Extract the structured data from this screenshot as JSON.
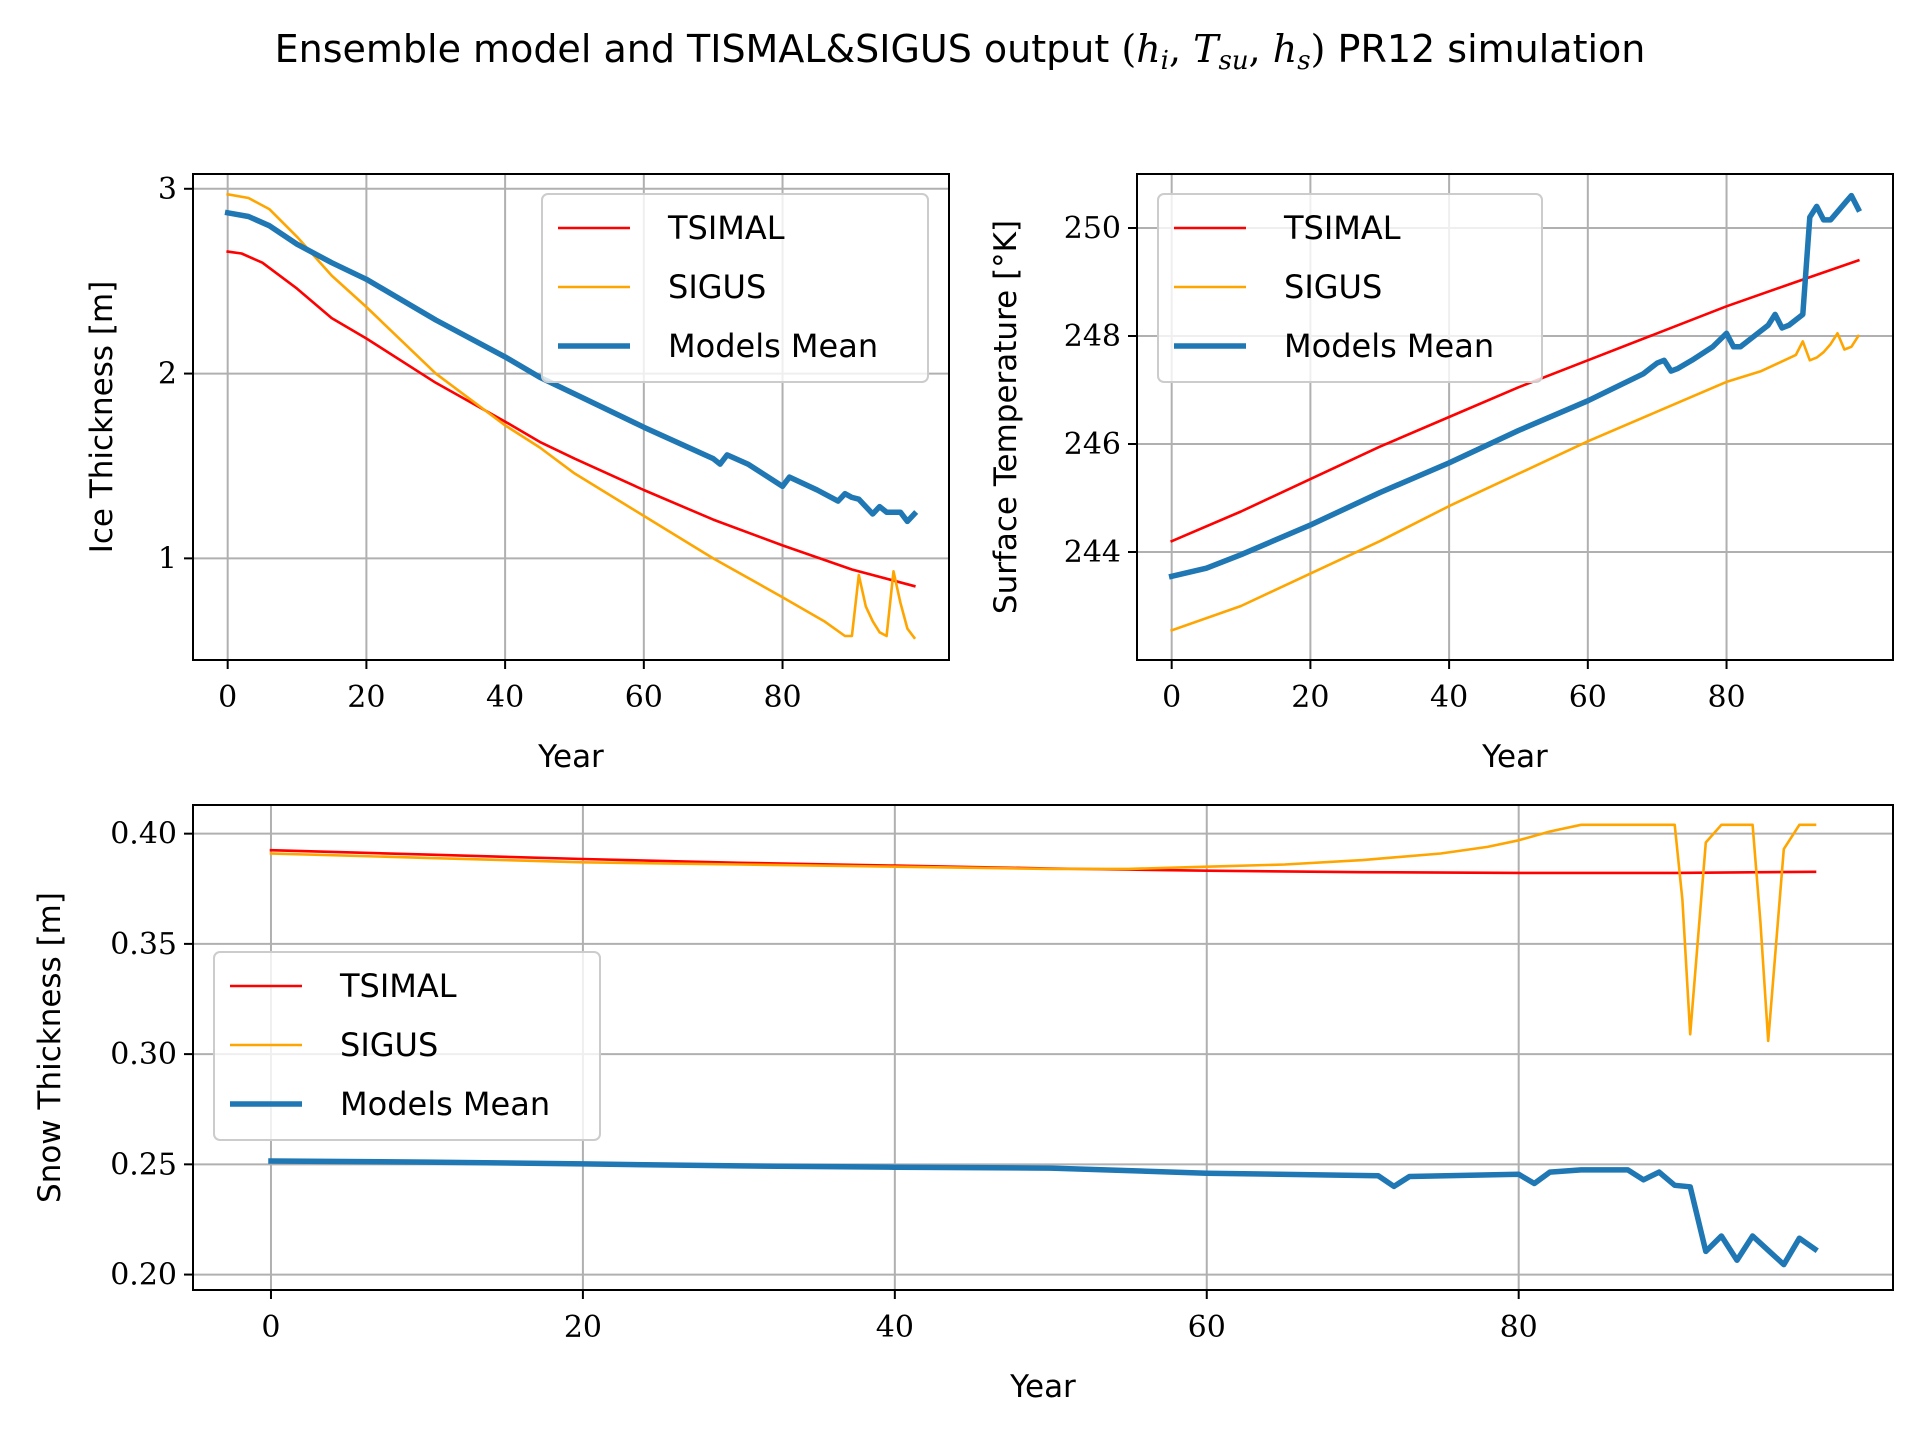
{
  "figure": {
    "title_prefix": "Ensemble model and TISMAL&SIGUS output ",
    "title_math": [
      "(",
      "h",
      "i",
      ", ",
      "T",
      "su",
      ", ",
      "h",
      "s",
      ")"
    ],
    "title_suffix": " PR12 simulation"
  },
  "colors": {
    "TSIMAL": "#ff0000",
    "SIGUS": "#ffa500",
    "Models Mean": "#1f77b4",
    "grid": "#b0b0b0"
  },
  "chart_data": [
    {
      "type": "line",
      "xlabel": "Year",
      "ylabel": "Ice Thickness [m]",
      "xlim": [
        -5,
        104
      ],
      "ylim": [
        0.45,
        3.08
      ],
      "xticks": [
        0,
        20,
        40,
        60,
        80
      ],
      "xtick_labels": [
        "0",
        "20",
        "40",
        "60",
        "80"
      ],
      "yticks": [
        1,
        2,
        3
      ],
      "ytick_labels": [
        "1",
        "2",
        "3"
      ],
      "grid": true,
      "legend": {
        "position": "upper right",
        "entries": [
          "TSIMAL",
          "SIGUS",
          "Models Mean"
        ]
      },
      "series": [
        {
          "name": "TSIMAL",
          "x": [
            0,
            2,
            5,
            10,
            15,
            20,
            30,
            40,
            45,
            50,
            60,
            70,
            80,
            90,
            99
          ],
          "y": [
            2.66,
            2.65,
            2.6,
            2.46,
            2.3,
            2.19,
            1.95,
            1.74,
            1.63,
            1.54,
            1.37,
            1.21,
            1.07,
            0.94,
            0.85
          ]
        },
        {
          "name": "SIGUS",
          "x": [
            0,
            3,
            6,
            10,
            15,
            20,
            30,
            40,
            45,
            50,
            60,
            70,
            80,
            86,
            89,
            90,
            91,
            92,
            93,
            94,
            95,
            96,
            97,
            98,
            99
          ],
          "y": [
            2.97,
            2.95,
            2.89,
            2.74,
            2.53,
            2.36,
            2.0,
            1.72,
            1.6,
            1.46,
            1.23,
            1.0,
            0.79,
            0.66,
            0.58,
            0.58,
            0.91,
            0.74,
            0.66,
            0.6,
            0.58,
            0.93,
            0.76,
            0.62,
            0.57
          ]
        },
        {
          "name": "Models Mean",
          "x": [
            0,
            3,
            6,
            10,
            15,
            20,
            30,
            40,
            45,
            50,
            60,
            70,
            71,
            72,
            75,
            80,
            81,
            85,
            88,
            89,
            90,
            91,
            92,
            93,
            94,
            95,
            96,
            97,
            98,
            99
          ],
          "y": [
            2.87,
            2.85,
            2.8,
            2.7,
            2.6,
            2.51,
            2.29,
            2.09,
            1.98,
            1.89,
            1.71,
            1.54,
            1.51,
            1.56,
            1.51,
            1.39,
            1.44,
            1.37,
            1.31,
            1.35,
            1.33,
            1.32,
            1.28,
            1.24,
            1.28,
            1.25,
            1.25,
            1.25,
            1.2,
            1.24
          ]
        }
      ]
    },
    {
      "type": "line",
      "xlabel": "Year",
      "ylabel": "Surface Temperature [°K]",
      "xlim": [
        -5,
        104
      ],
      "ylim": [
        242.0,
        251.0
      ],
      "xticks": [
        0,
        20,
        40,
        60,
        80
      ],
      "xtick_labels": [
        "0",
        "20",
        "40",
        "60",
        "80"
      ],
      "yticks": [
        244,
        246,
        248,
        250
      ],
      "ytick_labels": [
        "244",
        "246",
        "248",
        "250"
      ],
      "grid": true,
      "legend": {
        "position": "upper left",
        "entries": [
          "TSIMAL",
          "SIGUS",
          "Models Mean"
        ]
      },
      "series": [
        {
          "name": "TSIMAL",
          "x": [
            0,
            10,
            20,
            30,
            40,
            50,
            60,
            70,
            80,
            90,
            99
          ],
          "y": [
            244.2,
            244.75,
            245.35,
            245.95,
            246.5,
            247.05,
            247.55,
            248.05,
            248.55,
            249.0,
            249.4
          ]
        },
        {
          "name": "SIGUS",
          "x": [
            0,
            10,
            20,
            30,
            40,
            50,
            60,
            70,
            80,
            85,
            90,
            91,
            92,
            93,
            94,
            95,
            96,
            97,
            98,
            99
          ],
          "y": [
            242.55,
            243.0,
            243.6,
            244.2,
            244.85,
            245.45,
            246.05,
            246.6,
            247.15,
            247.35,
            247.65,
            247.9,
            247.55,
            247.6,
            247.7,
            247.85,
            248.05,
            247.75,
            247.8,
            248.0
          ]
        },
        {
          "name": "Models Mean",
          "x": [
            0,
            5,
            10,
            20,
            30,
            40,
            50,
            60,
            68,
            70,
            71,
            72,
            73,
            75,
            78,
            80,
            81,
            82,
            84,
            86,
            87,
            88,
            89,
            90,
            91,
            92,
            93,
            94,
            95,
            96,
            97,
            98,
            99
          ],
          "y": [
            243.55,
            243.7,
            243.95,
            244.5,
            245.1,
            245.65,
            246.25,
            246.8,
            247.3,
            247.5,
            247.55,
            247.35,
            247.4,
            247.55,
            247.8,
            248.05,
            247.8,
            247.8,
            248.0,
            248.2,
            248.4,
            248.15,
            248.2,
            248.3,
            248.4,
            250.2,
            250.4,
            250.15,
            250.15,
            250.3,
            250.45,
            250.6,
            250.35
          ]
        }
      ]
    },
    {
      "type": "line",
      "xlabel": "Year",
      "ylabel": "Snow Thickness [m]",
      "xlim": [
        -5,
        104
      ],
      "ylim": [
        0.193,
        0.413
      ],
      "xticks": [
        0,
        20,
        40,
        60,
        80
      ],
      "xtick_labels": [
        "0",
        "20",
        "40",
        "60",
        "80"
      ],
      "yticks": [
        0.2,
        0.25,
        0.3,
        0.35,
        0.4
      ],
      "ytick_labels": [
        "0.20",
        "0.25",
        "0.30",
        "0.35",
        "0.40"
      ],
      "grid": true,
      "legend": {
        "position": "center left",
        "entries": [
          "TSIMAL",
          "SIGUS",
          "Models Mean"
        ]
      },
      "series": [
        {
          "name": "TSIMAL",
          "x": [
            0,
            10,
            20,
            30,
            40,
            50,
            60,
            70,
            80,
            90,
            99
          ],
          "y": [
            0.3925,
            0.3905,
            0.3885,
            0.3868,
            0.3855,
            0.3842,
            0.3832,
            0.3825,
            0.3822,
            0.3822,
            0.3827
          ]
        },
        {
          "name": "SIGUS",
          "x": [
            0,
            10,
            20,
            30,
            40,
            50,
            55,
            60,
            65,
            70,
            75,
            78,
            80,
            82,
            84,
            86,
            88,
            90,
            90.5,
            91,
            92,
            93,
            94,
            95,
            95.5,
            96,
            97,
            98,
            99
          ],
          "y": [
            0.391,
            0.389,
            0.387,
            0.386,
            0.385,
            0.384,
            0.384,
            0.385,
            0.386,
            0.388,
            0.391,
            0.394,
            0.397,
            0.401,
            0.404,
            0.404,
            0.404,
            0.404,
            0.37,
            0.309,
            0.396,
            0.404,
            0.404,
            0.404,
            0.36,
            0.306,
            0.393,
            0.404,
            0.404
          ]
        },
        {
          "name": "Models Mean",
          "x": [
            0,
            10,
            20,
            30,
            40,
            50,
            60,
            71,
            72,
            73,
            80,
            81,
            82,
            84,
            86,
            87,
            88,
            89,
            90,
            91,
            92,
            93,
            94,
            95,
            96,
            97,
            98,
            99
          ],
          "y": [
            0.2515,
            0.251,
            0.2502,
            0.2493,
            0.2487,
            0.2483,
            0.246,
            0.2448,
            0.24,
            0.2445,
            0.2455,
            0.2413,
            0.2465,
            0.2475,
            0.2475,
            0.2475,
            0.243,
            0.2465,
            0.2405,
            0.2398,
            0.2105,
            0.2175,
            0.2065,
            0.2175,
            0.211,
            0.2045,
            0.2165,
            0.2115
          ]
        }
      ]
    }
  ]
}
